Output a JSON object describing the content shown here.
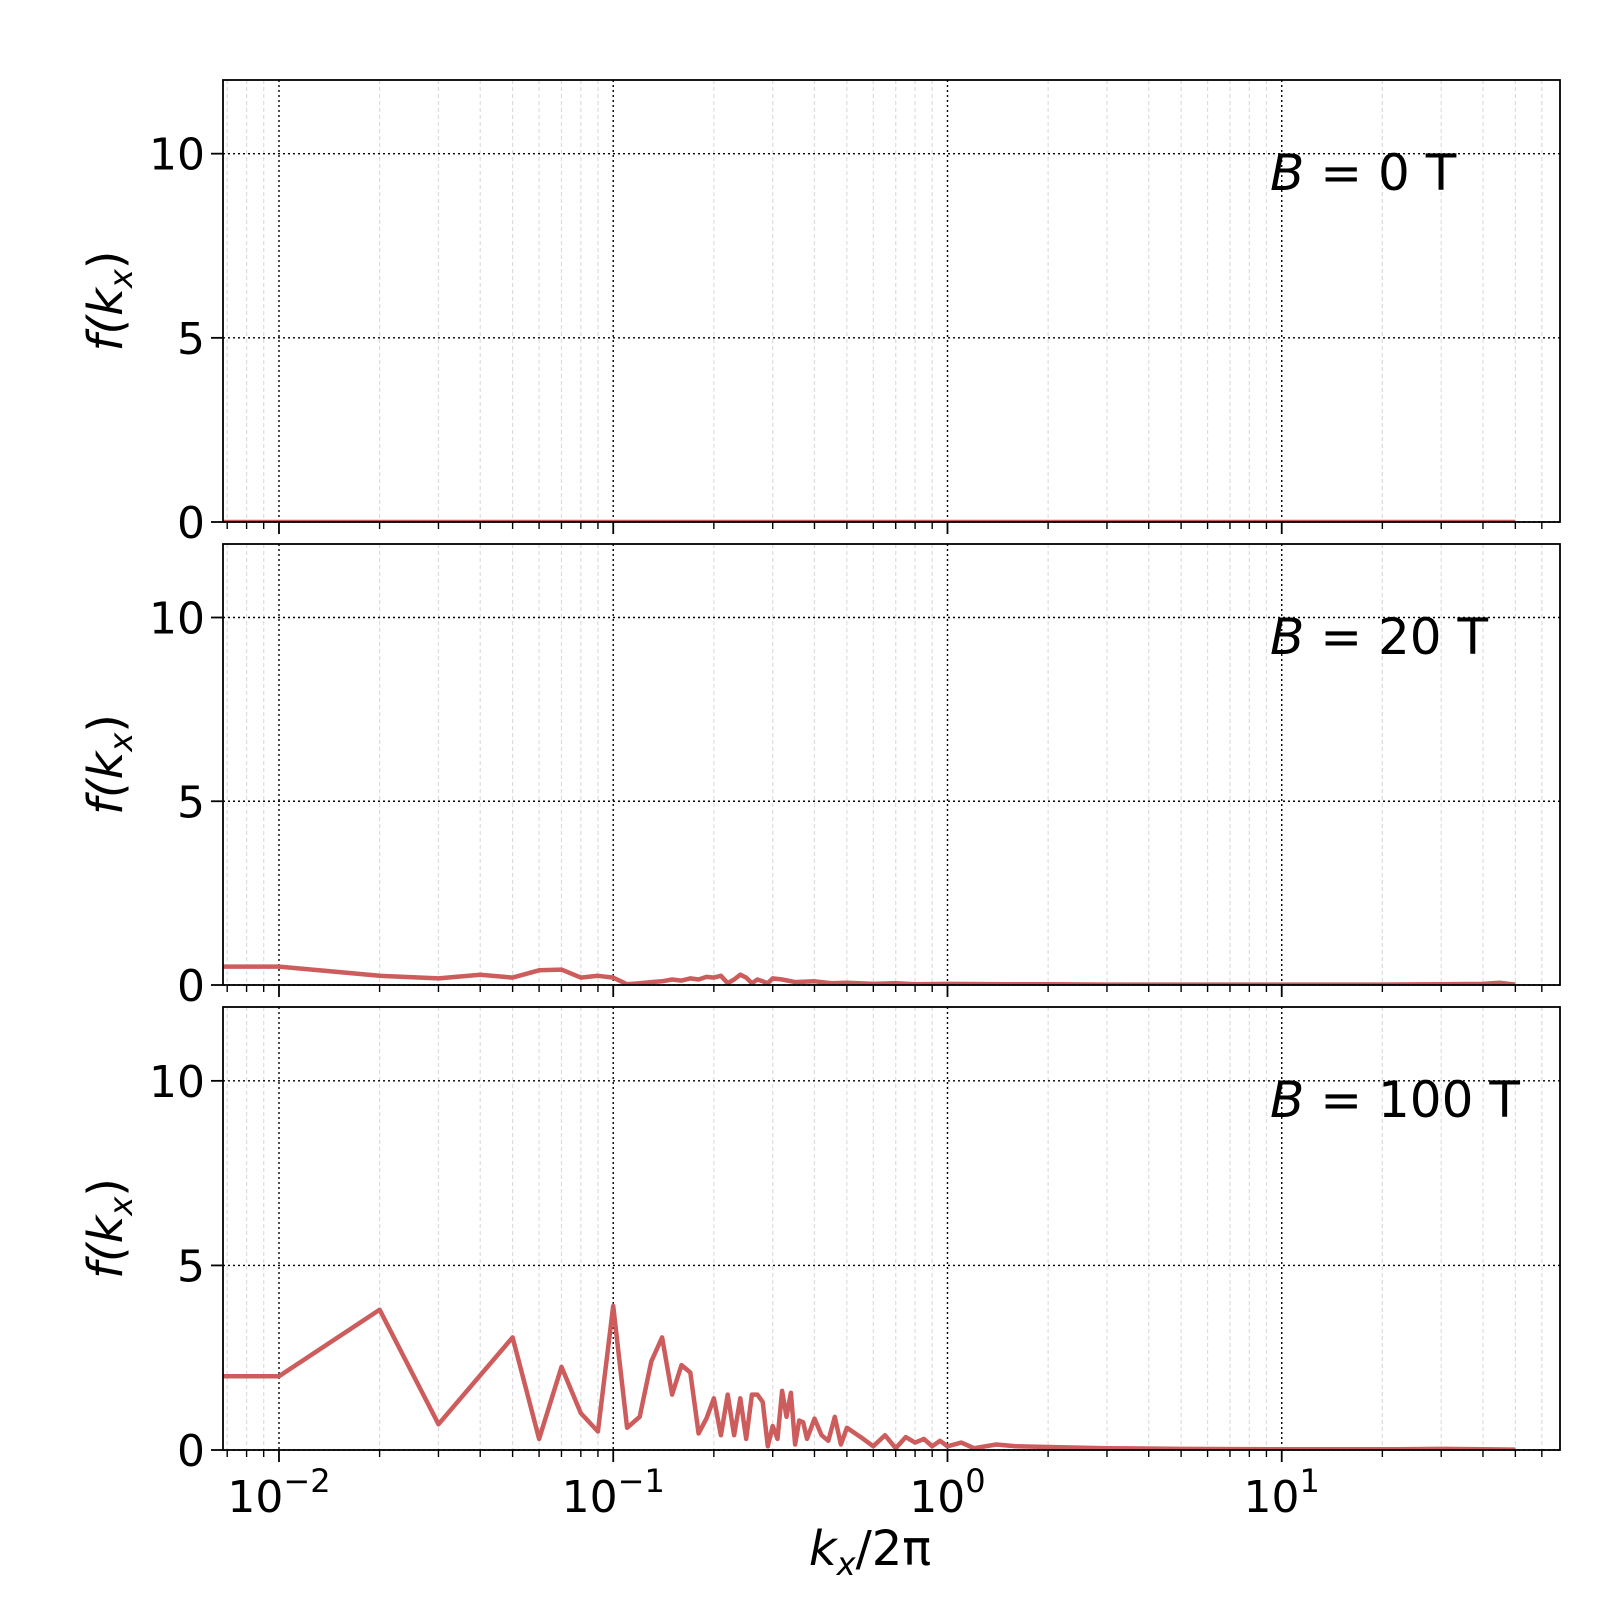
{
  "chart_data": [
    {
      "type": "line",
      "annotation": {
        "var": "B",
        "text": " = 0 T"
      },
      "xlabel": {
        "main": "k",
        "sub": "x",
        "tail": "/2π"
      },
      "ylabel": {
        "pre": "f(",
        "main": "k",
        "sub": "x",
        "post": ")"
      },
      "x_scale": "log",
      "xlim": [
        0.0068,
        68
      ],
      "ylim": [
        0,
        12
      ],
      "yticks": [
        0,
        5,
        10
      ],
      "xticks": [
        {
          "base": "10",
          "exp": "−2",
          "value": 0.01
        },
        {
          "base": "10",
          "exp": "−1",
          "value": 0.1
        },
        {
          "base": "10",
          "exp": "0",
          "value": 1
        },
        {
          "base": "10",
          "exp": "1",
          "value": 10
        }
      ],
      "show_xticklabels": false,
      "grid": true,
      "line_color": "#cd5c5c",
      "series": [
        {
          "x": [
            0.0068,
            0.01,
            0.1,
            1,
            10,
            50
          ],
          "y": [
            0,
            0,
            0,
            0,
            0,
            0
          ]
        }
      ]
    },
    {
      "type": "line",
      "annotation": {
        "var": "B",
        "text": " = 20 T"
      },
      "xlabel": {
        "main": "k",
        "sub": "x",
        "tail": "/2π"
      },
      "ylabel": {
        "pre": "f(",
        "main": "k",
        "sub": "x",
        "post": ")"
      },
      "x_scale": "log",
      "xlim": [
        0.0068,
        68
      ],
      "ylim": [
        0,
        12
      ],
      "yticks": [
        0,
        5,
        10
      ],
      "xticks": [
        {
          "base": "10",
          "exp": "−2",
          "value": 0.01
        },
        {
          "base": "10",
          "exp": "−1",
          "value": 0.1
        },
        {
          "base": "10",
          "exp": "0",
          "value": 1
        },
        {
          "base": "10",
          "exp": "1",
          "value": 10
        }
      ],
      "show_xticklabels": false,
      "grid": true,
      "line_color": "#cd5c5c",
      "series": [
        {
          "x": [
            0.0068,
            0.01,
            0.02,
            0.03,
            0.04,
            0.05,
            0.06,
            0.07,
            0.08,
            0.09,
            0.1,
            0.11,
            0.12,
            0.13,
            0.14,
            0.15,
            0.16,
            0.17,
            0.18,
            0.19,
            0.2,
            0.21,
            0.22,
            0.23,
            0.24,
            0.25,
            0.26,
            0.27,
            0.28,
            0.29,
            0.3,
            0.32,
            0.35,
            0.4,
            0.45,
            0.5,
            0.6,
            0.7,
            0.8,
            1.0,
            1.5,
            2,
            3,
            5,
            10,
            20,
            30,
            40,
            45,
            50
          ],
          "y": [
            0.5,
            0.5,
            0.25,
            0.18,
            0.28,
            0.2,
            0.4,
            0.42,
            0.2,
            0.25,
            0.2,
            0.02,
            0.05,
            0.08,
            0.1,
            0.15,
            0.12,
            0.18,
            0.15,
            0.22,
            0.2,
            0.25,
            0.05,
            0.15,
            0.28,
            0.2,
            0.05,
            0.15,
            0.1,
            0.05,
            0.18,
            0.15,
            0.08,
            0.1,
            0.05,
            0.06,
            0.03,
            0.05,
            0.02,
            0.03,
            0.02,
            0.02,
            0.01,
            0.01,
            0.01,
            0.01,
            0.02,
            0.03,
            0.06,
            0.01
          ]
        }
      ]
    },
    {
      "type": "line",
      "annotation": {
        "var": "B",
        "text": " = 100 T"
      },
      "xlabel": {
        "main": "k",
        "sub": "x",
        "tail": "/2π"
      },
      "ylabel": {
        "pre": "f(",
        "main": "k",
        "sub": "x",
        "post": ")"
      },
      "x_scale": "log",
      "xlim": [
        0.0068,
        68
      ],
      "ylim": [
        0,
        12
      ],
      "yticks": [
        0,
        5,
        10
      ],
      "xticks": [
        {
          "base": "10",
          "exp": "−2",
          "value": 0.01
        },
        {
          "base": "10",
          "exp": "−1",
          "value": 0.1
        },
        {
          "base": "10",
          "exp": "0",
          "value": 1
        },
        {
          "base": "10",
          "exp": "1",
          "value": 10
        }
      ],
      "show_xticklabels": true,
      "grid": true,
      "line_color": "#cd5c5c",
      "series": [
        {
          "x": [
            0.0068,
            0.01,
            0.02,
            0.03,
            0.05,
            0.06,
            0.07,
            0.08,
            0.09,
            0.1,
            0.11,
            0.12,
            0.13,
            0.14,
            0.15,
            0.16,
            0.17,
            0.18,
            0.19,
            0.2,
            0.21,
            0.22,
            0.23,
            0.24,
            0.25,
            0.26,
            0.27,
            0.28,
            0.29,
            0.3,
            0.31,
            0.32,
            0.33,
            0.34,
            0.35,
            0.36,
            0.37,
            0.38,
            0.4,
            0.42,
            0.44,
            0.46,
            0.48,
            0.5,
            0.55,
            0.6,
            0.65,
            0.7,
            0.75,
            0.8,
            0.85,
            0.9,
            0.95,
            1.0,
            1.1,
            1.2,
            1.4,
            1.6,
            2.0,
            3,
            5,
            10,
            20,
            30,
            40,
            50
          ],
          "y": [
            2.0,
            2.0,
            3.8,
            0.7,
            3.05,
            0.3,
            2.25,
            1.0,
            0.5,
            3.9,
            0.6,
            0.9,
            2.4,
            3.05,
            1.5,
            2.3,
            2.1,
            0.45,
            0.85,
            1.4,
            0.4,
            1.5,
            0.4,
            1.4,
            0.3,
            1.5,
            1.5,
            1.3,
            0.1,
            0.65,
            0.3,
            1.6,
            0.9,
            1.55,
            0.15,
            0.8,
            0.75,
            0.3,
            0.85,
            0.4,
            0.25,
            0.9,
            0.15,
            0.6,
            0.35,
            0.1,
            0.4,
            0.05,
            0.35,
            0.2,
            0.3,
            0.1,
            0.25,
            0.1,
            0.2,
            0.05,
            0.15,
            0.1,
            0.08,
            0.05,
            0.03,
            0.02,
            0.02,
            0.03,
            0.02,
            0.01
          ]
        }
      ]
    }
  ]
}
